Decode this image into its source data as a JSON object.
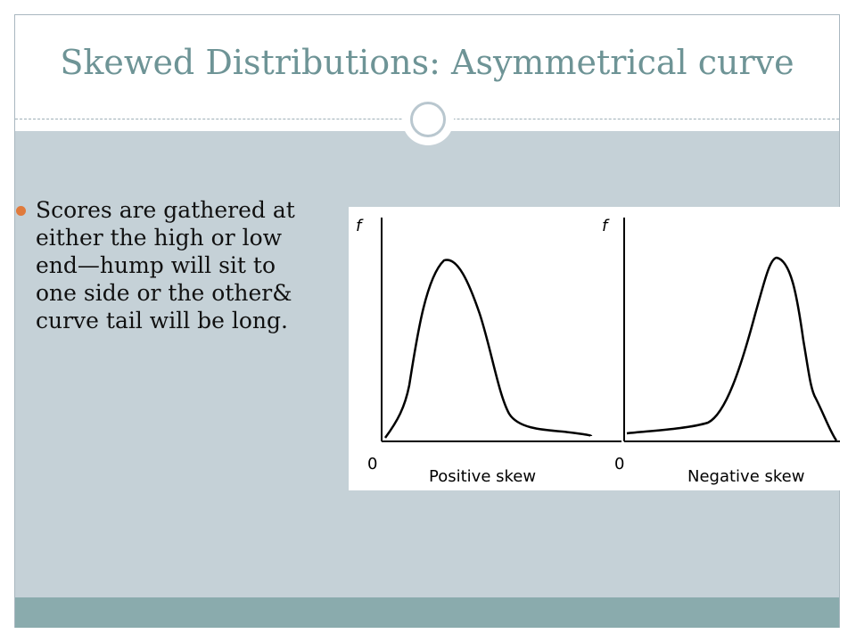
{
  "slide": {
    "title": "Skewed Distributions: Asymmetrical curve",
    "bullets": [
      "Scores are gathered at either the high or low end—hump will sit to one side or the other& curve tail will be long."
    ]
  },
  "figure": {
    "panels": [
      {
        "y_label": "f",
        "origin_label": "0",
        "caption": "Positive skew"
      },
      {
        "y_label": "f",
        "origin_label": "0",
        "caption": "Negative skew"
      }
    ]
  },
  "colors": {
    "title": "#6e9496",
    "content_background": "#c5d1d7",
    "footer_band": "#8aabad",
    "bullet": "#e07a3b"
  }
}
